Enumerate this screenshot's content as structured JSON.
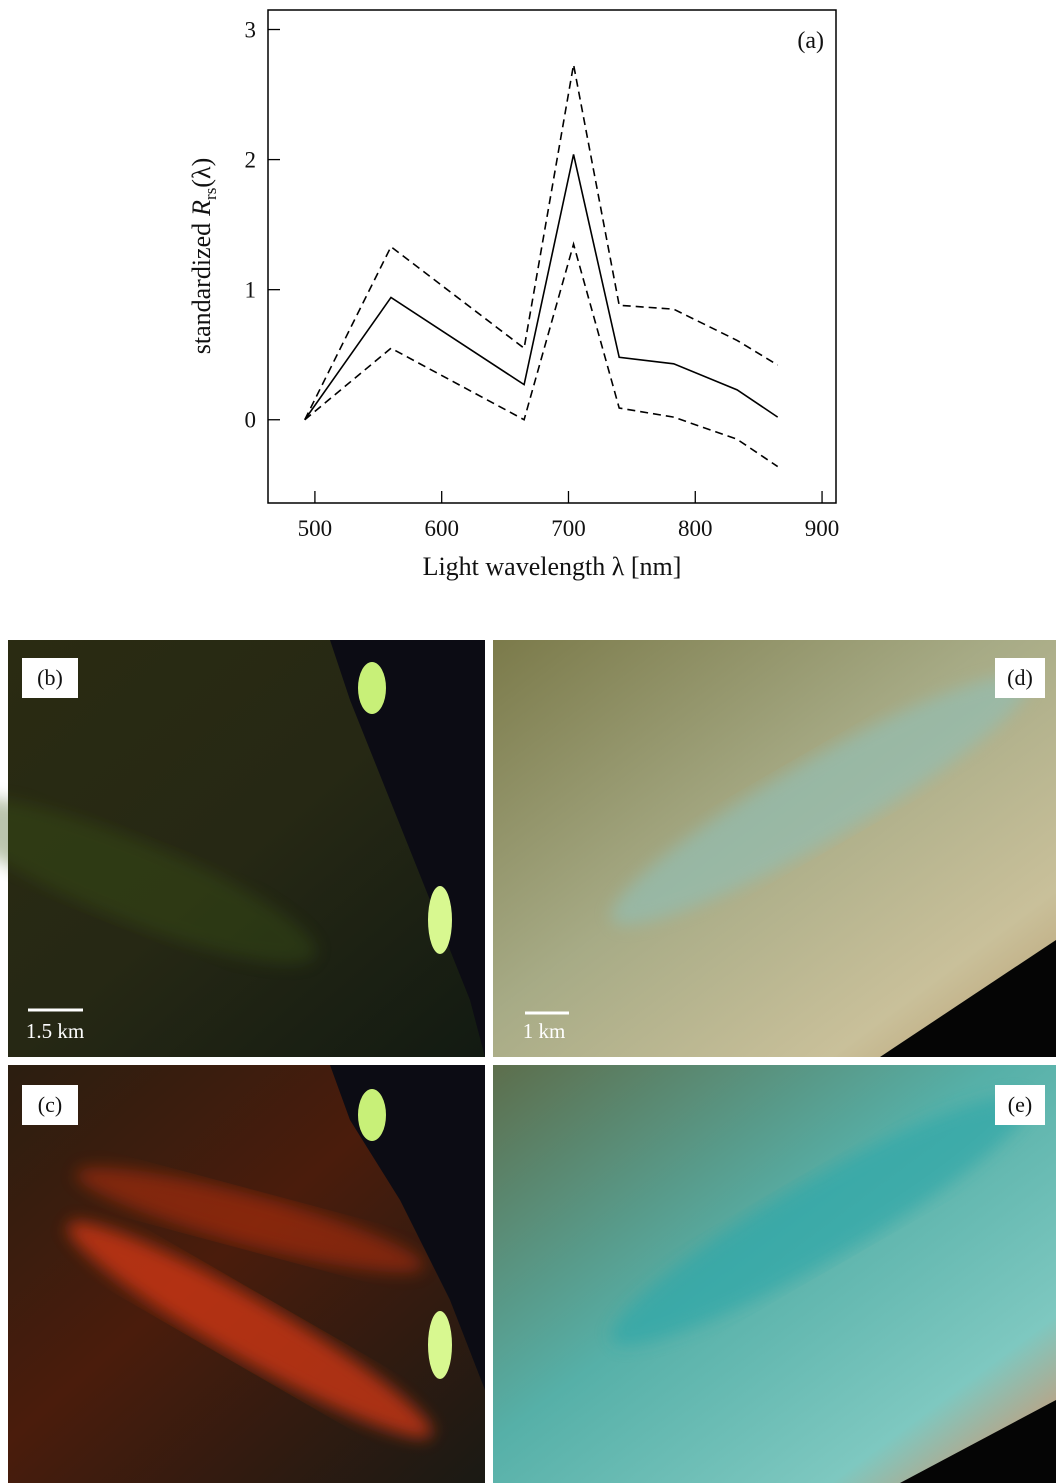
{
  "chart_data": {
    "type": "line",
    "panel_label": "(a)",
    "x_label": "Light wavelength  λ [nm]",
    "y_label": {
      "prefix": "standardized",
      "symbol": "R",
      "subscript": "rs",
      "suffix": "(λ)"
    },
    "x": [
      492,
      560,
      665,
      704,
      740,
      783,
      833,
      865
    ],
    "series": [
      {
        "style": "solid",
        "color": "#000000",
        "values": [
          0,
          0.94,
          0.27,
          2.04,
          0.48,
          0.43,
          0.23,
          0.02
        ]
      },
      {
        "style": "dashed",
        "color": "#000000",
        "values": [
          0,
          1.33,
          0.55,
          2.73,
          0.88,
          0.85,
          0.61,
          0.42
        ]
      },
      {
        "style": "dashed",
        "color": "#000000",
        "values": [
          0,
          0.55,
          0.0,
          1.35,
          0.09,
          0.02,
          -0.15,
          -0.36
        ]
      }
    ],
    "xlim": [
      463,
      911
    ],
    "ylim": [
      -0.64,
      3.15
    ],
    "xticks": [
      500,
      600,
      700,
      800,
      900
    ],
    "yticks": [
      0,
      1,
      2,
      3
    ]
  },
  "images": [
    {
      "label": "(b)",
      "scale_bar": "1.5 km"
    },
    {
      "label": "(d)",
      "scale_bar": "1 km"
    },
    {
      "label": "(c)"
    },
    {
      "label": "(e)"
    }
  ]
}
